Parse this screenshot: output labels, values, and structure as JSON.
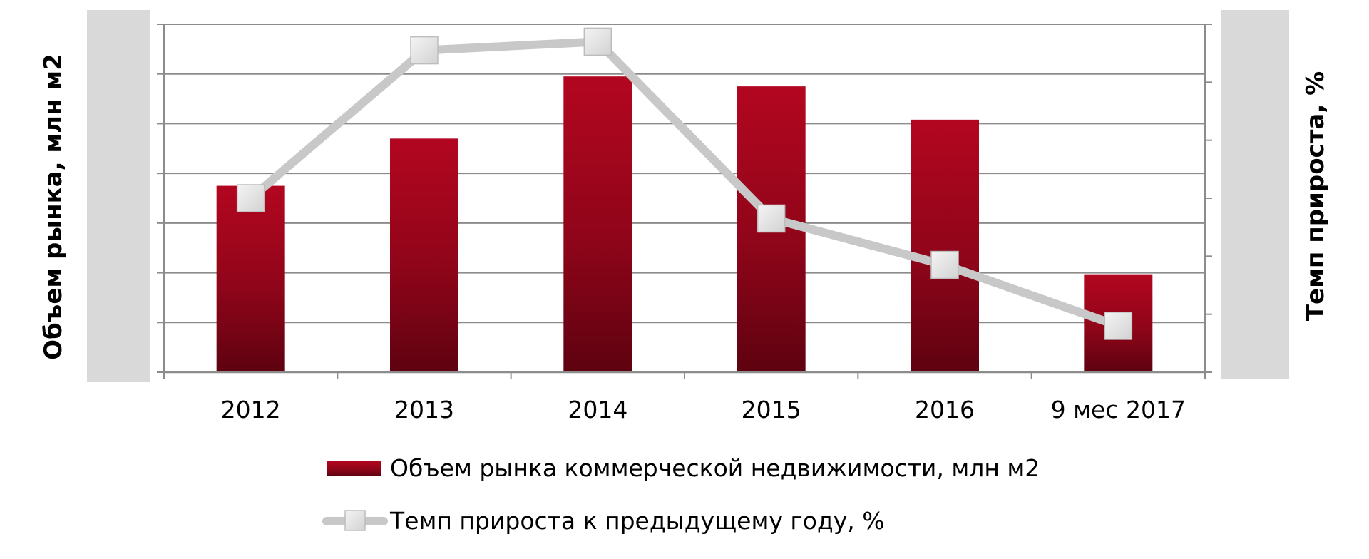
{
  "chart_data": {
    "type": "bar",
    "categories": [
      "2012",
      "2013",
      "2014",
      "2015",
      "2016",
      "9 мес 2017"
    ],
    "ylabel": "Объем рынка, млн м2",
    "y2label": "Темп прироста, %",
    "ylim": [
      0,
      7
    ],
    "y2lim": [
      0,
      6
    ],
    "grid": true,
    "legend_position": "bottom",
    "series": [
      {
        "name": "Объем рынка коммерческой недвижимости, млн м2",
        "type": "bar",
        "axis": "left",
        "color": "#a8061c",
        "values": [
          3.75,
          4.7,
          5.95,
          5.75,
          5.08,
          1.97
        ]
      },
      {
        "name": "Темп прироста к предыдущему году, %",
        "type": "line",
        "axis": "right",
        "color": "#c8c8c8",
        "marker": "square",
        "values": [
          3.0,
          5.55,
          5.7,
          2.65,
          1.85,
          0.8
        ]
      }
    ]
  }
}
